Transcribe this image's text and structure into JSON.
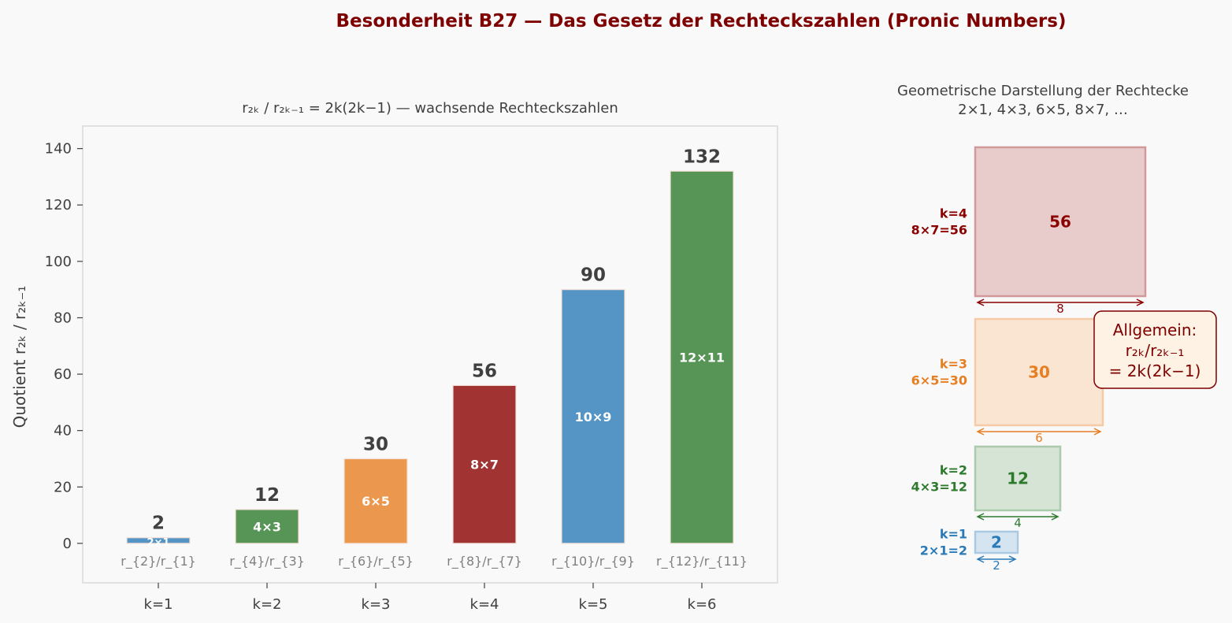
{
  "title": "Besonderheit B27 — Das Gesetz der Rechteckszahlen (Pronic Numbers)",
  "colors": {
    "blue": "#2a7ab8",
    "green": "#2d7a2d",
    "orange": "#e67e22",
    "red": "#8b0000",
    "title": "#7f0000"
  },
  "chart_data": {
    "type": "bar",
    "title": "r₂ₖ / r₂ₖ₋₁ = 2k(2k−1) — wachsende Rechteckszahlen",
    "xlabel": "",
    "ylabel": "Quotient r₂ₖ / r₂ₖ₋₁",
    "categories": [
      "k=1",
      "k=2",
      "k=3",
      "k=4",
      "k=5",
      "k=6"
    ],
    "values": [
      2,
      12,
      30,
      56,
      90,
      132
    ],
    "value_labels": [
      "2",
      "12",
      "30",
      "56",
      "90",
      "132"
    ],
    "inner_labels": [
      "2×1",
      "4×3",
      "6×5",
      "8×7",
      "10×9",
      "12×11"
    ],
    "ratio_labels": [
      "r_{2}/r_{1}",
      "r_{4}/r_{3}",
      "r_{6}/r_{5}",
      "r_{8}/r_{7}",
      "r_{10}/r_{9}",
      "r_{12}/r_{11}"
    ],
    "bar_colors": [
      "blue",
      "green",
      "orange",
      "red",
      "blue",
      "green"
    ],
    "ylim": [
      -14,
      148
    ],
    "yticks": [
      0,
      20,
      40,
      60,
      80,
      100,
      120,
      140
    ],
    "grid": false
  },
  "geometry_panel": {
    "title_line1": "Geometrische Darstellung der Rechtecke",
    "title_line2": "2×1, 4×3, 6×5, 8×7, …",
    "rectangles": [
      {
        "k_label": "k=1",
        "product_label": "2×1=2",
        "value": "2",
        "width": 2,
        "height": 1,
        "width_label": "2",
        "color": "blue"
      },
      {
        "k_label": "k=2",
        "product_label": "4×3=12",
        "value": "12",
        "width": 4,
        "height": 3,
        "width_label": "4",
        "color": "green"
      },
      {
        "k_label": "k=3",
        "product_label": "6×5=30",
        "value": "30",
        "width": 6,
        "height": 5,
        "width_label": "6",
        "color": "orange"
      },
      {
        "k_label": "k=4",
        "product_label": "8×7=56",
        "value": "56",
        "width": 8,
        "height": 7,
        "width_label": "8",
        "color": "red"
      }
    ],
    "formula_box": {
      "line1": "Allgemein:",
      "line2": "r₂ₖ/r₂ₖ₋₁",
      "line3": "= 2k(2k−1)"
    }
  }
}
